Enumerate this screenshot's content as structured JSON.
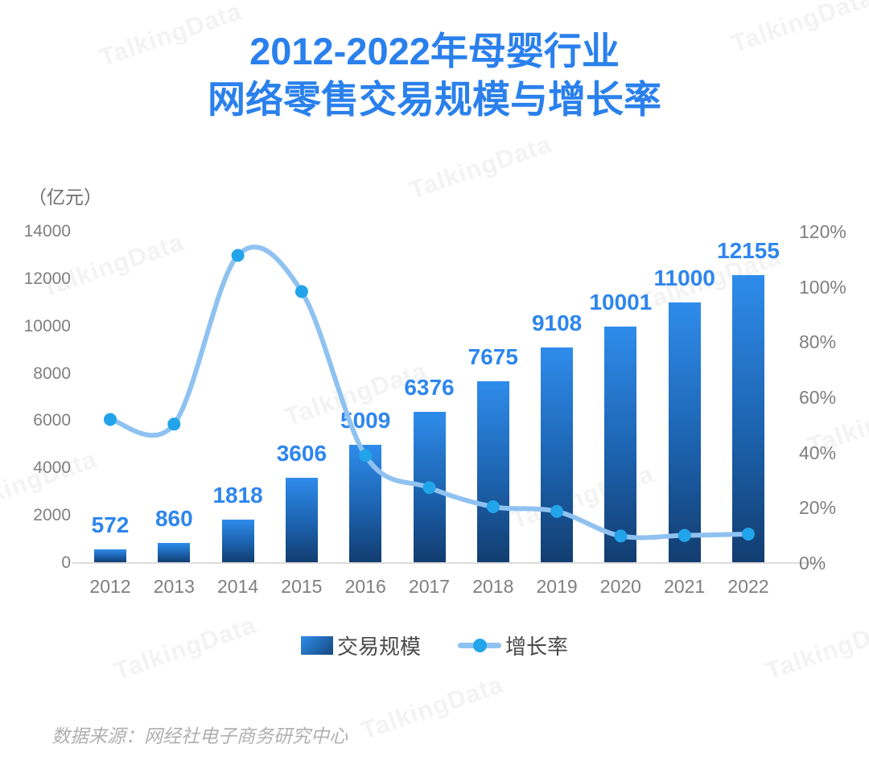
{
  "title": {
    "line1": "2012-2022年母婴行业",
    "line2": "网络零售交易规模与增长率"
  },
  "unit_label": "（亿元）",
  "watermark": {
    "text": "TalkingData"
  },
  "source_note": "数据来源：网经社电子商务研究中心",
  "colors": {
    "title_blue": "#2a80ec",
    "value_label_blue": "#2e86ee",
    "bar_gradient_top": "#2f8ceb",
    "bar_gradient_bottom": "#123d70",
    "line_light_blue": "#8fc2f1",
    "marker_blue": "#22a4ea",
    "axis_text_gray": "#7f7f7f",
    "legend_text_gray": "#4a4a4a",
    "source_text_gray": "#b0b0b0",
    "baseline_gray": "#dcdcdc"
  },
  "chart_data": {
    "type": "bar",
    "title": "2012-2022年母婴行业网络零售交易规模与增长率",
    "categories": [
      "2012",
      "2013",
      "2014",
      "2015",
      "2016",
      "2017",
      "2018",
      "2019",
      "2020",
      "2021",
      "2022"
    ],
    "series": [
      {
        "name": "交易规模",
        "type": "bar",
        "axis": "left",
        "unit": "亿元",
        "values": [
          572,
          860,
          1818,
          3606,
          5009,
          6376,
          7675,
          9108,
          10001,
          11000,
          12155
        ]
      },
      {
        "name": "增长率",
        "type": "line",
        "axis": "right",
        "unit": "%",
        "values": [
          52,
          50.3,
          111.4,
          98.3,
          38.9,
          27.3,
          20.4,
          18.7,
          9.8,
          10,
          10.5
        ]
      }
    ],
    "left_axis": {
      "label": "（亿元）",
      "min": 0,
      "max": 14000,
      "ticks": [
        "14000",
        "12000",
        "10000",
        "8000",
        "6000",
        "4000",
        "2000",
        "0"
      ]
    },
    "right_axis": {
      "min": "0%",
      "max": "120%",
      "ticks": [
        "120%",
        "100%",
        "80%",
        "60%",
        "40%",
        "20%",
        "0%"
      ]
    },
    "legend_position": "bottom",
    "grid": false
  }
}
